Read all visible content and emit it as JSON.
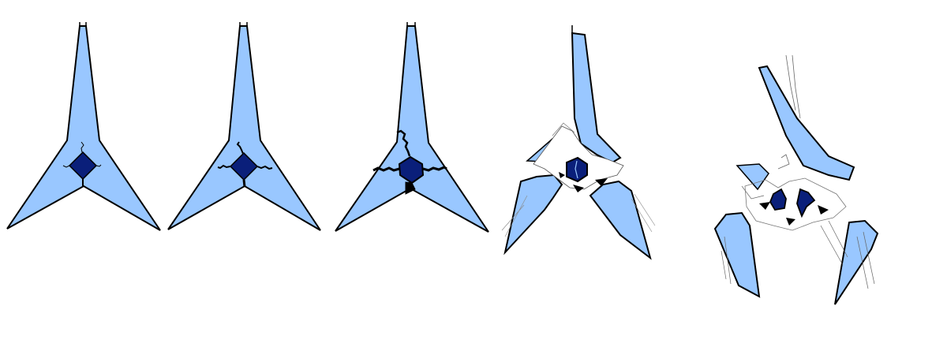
{
  "figure": {
    "panels": 5,
    "colors": {
      "arm_fill": "#99c7ff",
      "core_fill": "#0a1f7a",
      "outline": "#000000",
      "background": "#ffffff"
    },
    "stages": [
      {
        "id": "stage-1",
        "description_shown": false
      },
      {
        "id": "stage-2",
        "description_shown": false
      },
      {
        "id": "stage-3",
        "description_shown": false
      },
      {
        "id": "stage-4",
        "description_shown": false
      },
      {
        "id": "stage-5",
        "description_shown": false
      }
    ]
  }
}
